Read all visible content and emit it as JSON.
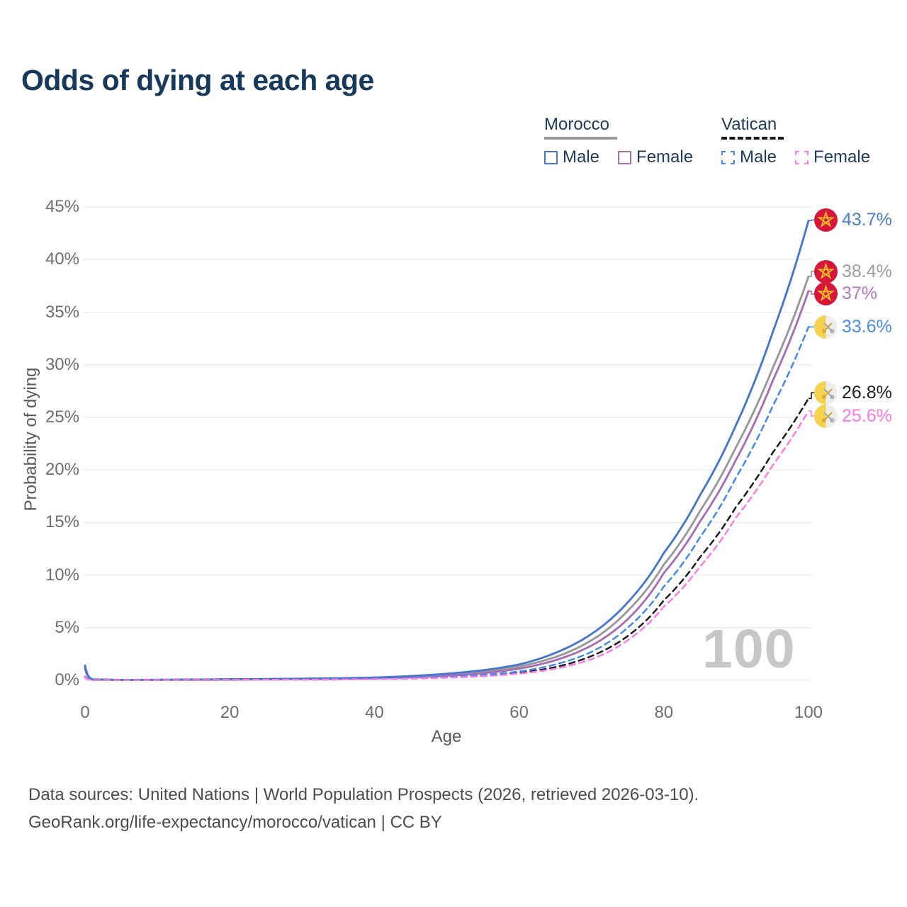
{
  "title": "Odds of dying at each age",
  "legend": {
    "groups": [
      {
        "name": "Morocco",
        "line_style": "solid",
        "underline_color": "#9b9b9b",
        "items": [
          {
            "label": "Male",
            "color": "#4677c8",
            "dash": "solid"
          },
          {
            "label": "Female",
            "color": "#a76fb3",
            "dash": "solid"
          }
        ]
      },
      {
        "name": "Vatican",
        "line_style": "dashed",
        "underline_color": "#1a1a1a",
        "items": [
          {
            "label": "Male",
            "color": "#4489e8",
            "dash": "dashed"
          },
          {
            "label": "Female",
            "color": "#fb7ce8",
            "dash": "dashed"
          }
        ]
      }
    ]
  },
  "chart_data": {
    "type": "line",
    "title": "Odds of dying at each age",
    "xlabel": "Age",
    "ylabel": "Probability of dying",
    "xlim": [
      0,
      100
    ],
    "ylim": [
      0,
      45
    ],
    "grid": "horizontal",
    "legend_position": "top-right",
    "watermark": "100",
    "x_ticks": [
      {
        "v": 0,
        "label": "0"
      },
      {
        "v": 20,
        "label": "20"
      },
      {
        "v": 40,
        "label": "40"
      },
      {
        "v": 60,
        "label": "60"
      },
      {
        "v": 80,
        "label": "80"
      },
      {
        "v": 100,
        "label": "100"
      }
    ],
    "y_ticks": [
      {
        "v": 0,
        "label": "0%"
      },
      {
        "v": 5,
        "label": "5%"
      },
      {
        "v": 10,
        "label": "10%"
      },
      {
        "v": 15,
        "label": "15%"
      },
      {
        "v": 20,
        "label": "20%"
      },
      {
        "v": 25,
        "label": "25%"
      },
      {
        "v": 30,
        "label": "30%"
      },
      {
        "v": 35,
        "label": "35%"
      },
      {
        "v": 40,
        "label": "40%"
      },
      {
        "v": 45,
        "label": "45%"
      }
    ],
    "ages": [
      0,
      1,
      5,
      10,
      15,
      20,
      25,
      30,
      35,
      40,
      45,
      50,
      55,
      60,
      65,
      70,
      75,
      80,
      85,
      90,
      95,
      100
    ],
    "series": [
      {
        "id": "morocco-both",
        "name": "Morocco",
        "country": "Morocco",
        "sex": "Both",
        "color": "#989898",
        "label_color": "#9d9d9d",
        "dash": "solid",
        "flag": "morocco",
        "end_label": "38.4%",
        "end_value": 38.4,
        "values": [
          1.25,
          0.08,
          0.035,
          0.045,
          0.06,
          0.08,
          0.1,
          0.12,
          0.16,
          0.22,
          0.33,
          0.52,
          0.8,
          1.3,
          2.2,
          3.8,
          6.6,
          11.0,
          16.1,
          22.2,
          29.6,
          38.4
        ]
      },
      {
        "id": "morocco-female",
        "name": "Morocco Female",
        "country": "Morocco",
        "sex": "Female",
        "color": "#a76fb3",
        "label_color": "#b478bd",
        "dash": "solid",
        "flag": "morocco",
        "end_label": "37%",
        "end_value": 37.0,
        "values": [
          1.1,
          0.07,
          0.03,
          0.04,
          0.05,
          0.07,
          0.08,
          0.1,
          0.13,
          0.18,
          0.27,
          0.43,
          0.67,
          1.1,
          1.9,
          3.3,
          5.8,
          10.2,
          15.1,
          21.0,
          28.4,
          37.0
        ]
      },
      {
        "id": "morocco-male",
        "name": "Morocco Male",
        "country": "Morocco",
        "sex": "Male",
        "color": "#4677c8",
        "label_color": "#4a7fc7",
        "dash": "solid",
        "flag": "morocco",
        "end_label": "43.7%",
        "end_value": 43.7,
        "values": [
          1.4,
          0.09,
          0.04,
          0.05,
          0.07,
          0.1,
          0.12,
          0.15,
          0.19,
          0.26,
          0.4,
          0.62,
          0.95,
          1.5,
          2.6,
          4.4,
          7.4,
          12.1,
          17.6,
          24.3,
          33.0,
          43.7
        ]
      },
      {
        "id": "vatican-both",
        "name": "Vatican",
        "country": "Vatican",
        "sex": "Both",
        "color": "#1a1a1a",
        "label_color": "#1f1f1f",
        "dash": "dashed",
        "flag": "vatican",
        "end_label": "26.8%",
        "end_value": 26.8,
        "values": [
          0.3,
          0.025,
          0.018,
          0.02,
          0.03,
          0.04,
          0.05,
          0.06,
          0.08,
          0.11,
          0.17,
          0.27,
          0.43,
          0.7,
          1.25,
          2.3,
          4.2,
          7.6,
          11.7,
          16.5,
          21.6,
          26.8
        ]
      },
      {
        "id": "vatican-male",
        "name": "Vatican Male",
        "country": "Vatican",
        "sex": "Male",
        "color": "#4489e8",
        "label_color": "#4a8de4",
        "dash": "dashed",
        "flag": "vatican",
        "end_label": "33.6%",
        "end_value": 33.6,
        "values": [
          0.35,
          0.03,
          0.02,
          0.02,
          0.03,
          0.05,
          0.06,
          0.07,
          0.09,
          0.13,
          0.2,
          0.32,
          0.51,
          0.83,
          1.5,
          2.7,
          5.0,
          8.9,
          13.6,
          19.3,
          26.0,
          33.6
        ]
      },
      {
        "id": "vatican-female",
        "name": "Vatican Female",
        "country": "Vatican",
        "sex": "Female",
        "color": "#fb7ce8",
        "label_color": "#fb79e1",
        "dash": "dashed",
        "flag": "vatican",
        "end_label": "25.6%",
        "end_value": 25.6,
        "values": [
          0.25,
          0.02,
          0.015,
          0.018,
          0.025,
          0.035,
          0.045,
          0.055,
          0.07,
          0.1,
          0.15,
          0.24,
          0.38,
          0.63,
          1.1,
          2.0,
          3.8,
          7.0,
          10.8,
          15.5,
          20.4,
          25.6
        ]
      }
    ]
  },
  "flag_colors": {
    "morocco_red": "#d6173a",
    "morocco_star": "#f2c129",
    "vatican_gold": "#f6d24e",
    "vatican_silver": "#ededed",
    "key_gold": "#d9a62e",
    "key_silver": "#a8a8a8"
  },
  "footer": {
    "line1": "Data sources: United Nations | World Population Prospects (2026, retrieved 2026-03-10).",
    "line2": "GeoRank.org/life-expectancy/morocco/vatican | CC BY"
  }
}
